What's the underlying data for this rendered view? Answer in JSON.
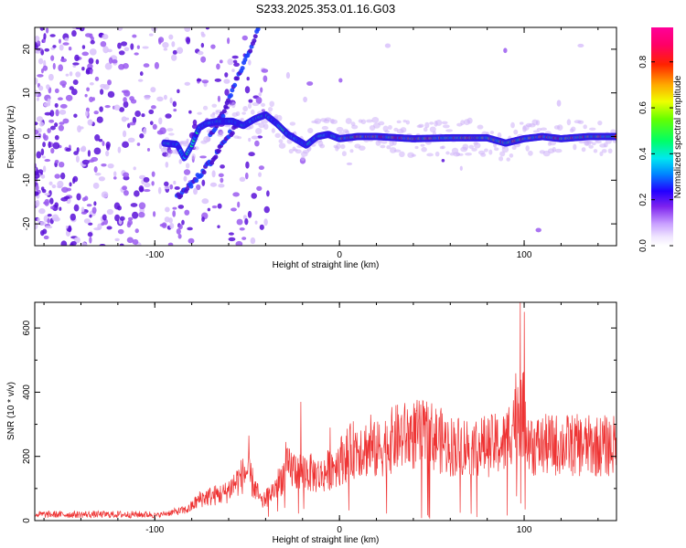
{
  "title": "S233.2025.353.01.16.G03",
  "chart_data": [
    {
      "type": "heatmap",
      "name": "spectrogram",
      "xlabel": "Height of straight line (km)",
      "ylabel": "Frequency (Hz)",
      "xlim": [
        -165,
        150
      ],
      "ylim": [
        -25,
        25
      ],
      "xticks": [
        -100,
        0,
        100
      ],
      "yticks": [
        -20,
        -10,
        0,
        10,
        20
      ],
      "colorbar": {
        "label": "Normalized spectral amplitude",
        "range": [
          0.0,
          0.95
        ],
        "ticks": [
          0.0,
          0.2,
          0.4,
          0.6,
          0.8
        ]
      },
      "ridge": [
        {
          "x": -95,
          "freq": -1.5
        },
        {
          "x": -88,
          "freq": -1.8
        },
        {
          "x": -84,
          "freq": -5
        },
        {
          "x": -80,
          "freq": -2
        },
        {
          "x": -76,
          "freq": 2
        },
        {
          "x": -72,
          "freq": 3
        },
        {
          "x": -66,
          "freq": 3.5
        },
        {
          "x": -58,
          "freq": 3.5
        },
        {
          "x": -52,
          "freq": 2.5
        },
        {
          "x": -46,
          "freq": 4
        },
        {
          "x": -40,
          "freq": 5
        },
        {
          "x": -34,
          "freq": 3
        },
        {
          "x": -28,
          "freq": 0.5
        },
        {
          "x": -22,
          "freq": -1
        },
        {
          "x": -18,
          "freq": -2
        },
        {
          "x": -12,
          "freq": 0
        },
        {
          "x": -6,
          "freq": 0.5
        },
        {
          "x": 0,
          "freq": -0.5
        },
        {
          "x": 10,
          "freq": 0
        },
        {
          "x": 20,
          "freq": 0
        },
        {
          "x": 40,
          "freq": -0.5
        },
        {
          "x": 60,
          "freq": -0.3
        },
        {
          "x": 80,
          "freq": -0.3
        },
        {
          "x": 90,
          "freq": -1.5
        },
        {
          "x": 100,
          "freq": -0.5
        },
        {
          "x": 110,
          "freq": 0
        },
        {
          "x": 120,
          "freq": -0.5
        },
        {
          "x": 135,
          "freq": 0
        },
        {
          "x": 150,
          "freq": 0
        }
      ],
      "upper_branch": [
        {
          "x": -70,
          "freq": 0
        },
        {
          "x": -62,
          "freq": 6
        },
        {
          "x": -55,
          "freq": 14
        },
        {
          "x": -48,
          "freq": 20
        },
        {
          "x": -44,
          "freq": 25
        }
      ],
      "lower_branch": [
        {
          "x": -88,
          "freq": -14
        },
        {
          "x": -78,
          "freq": -10
        },
        {
          "x": -70,
          "freq": -6
        },
        {
          "x": -62,
          "freq": -1
        },
        {
          "x": -55,
          "freq": 3
        }
      ]
    },
    {
      "type": "line",
      "name": "snr",
      "xlabel": "Height of straight line (km)",
      "ylabel": "SNR (10 * v/v)",
      "xlim": [
        -165,
        150
      ],
      "ylim": [
        0,
        680
      ],
      "xticks": [
        -100,
        0,
        100
      ],
      "yticks": [
        0,
        200,
        400,
        600
      ],
      "color": "#ee3333",
      "envelope": [
        {
          "x": -165,
          "y": 20
        },
        {
          "x": -100,
          "y": 20
        },
        {
          "x": -82,
          "y": 45
        },
        {
          "x": -75,
          "y": 90
        },
        {
          "x": -62,
          "y": 110
        },
        {
          "x": -50,
          "y": 200
        },
        {
          "x": -42,
          "y": 70
        },
        {
          "x": -36,
          "y": 120
        },
        {
          "x": -28,
          "y": 210
        },
        {
          "x": -20,
          "y": 200
        },
        {
          "x": -10,
          "y": 180
        },
        {
          "x": 0,
          "y": 240
        },
        {
          "x": 10,
          "y": 300
        },
        {
          "x": 20,
          "y": 280
        },
        {
          "x": 30,
          "y": 330
        },
        {
          "x": 40,
          "y": 345
        },
        {
          "x": 50,
          "y": 340
        },
        {
          "x": 60,
          "y": 300
        },
        {
          "x": 70,
          "y": 300
        },
        {
          "x": 80,
          "y": 300
        },
        {
          "x": 90,
          "y": 310
        },
        {
          "x": 96,
          "y": 450
        },
        {
          "x": 100,
          "y": 420
        },
        {
          "x": 105,
          "y": 300
        },
        {
          "x": 120,
          "y": 305
        },
        {
          "x": 135,
          "y": 300
        },
        {
          "x": 150,
          "y": 300
        }
      ],
      "spikes": [
        {
          "x": -49,
          "y": 265
        },
        {
          "x": -29,
          "y": 245
        },
        {
          "x": -21,
          "y": 370
        },
        {
          "x": -5,
          "y": 290
        },
        {
          "x": 17,
          "y": 330
        },
        {
          "x": 98,
          "y": 680
        },
        {
          "x": 100,
          "y": 650
        }
      ]
    }
  ]
}
